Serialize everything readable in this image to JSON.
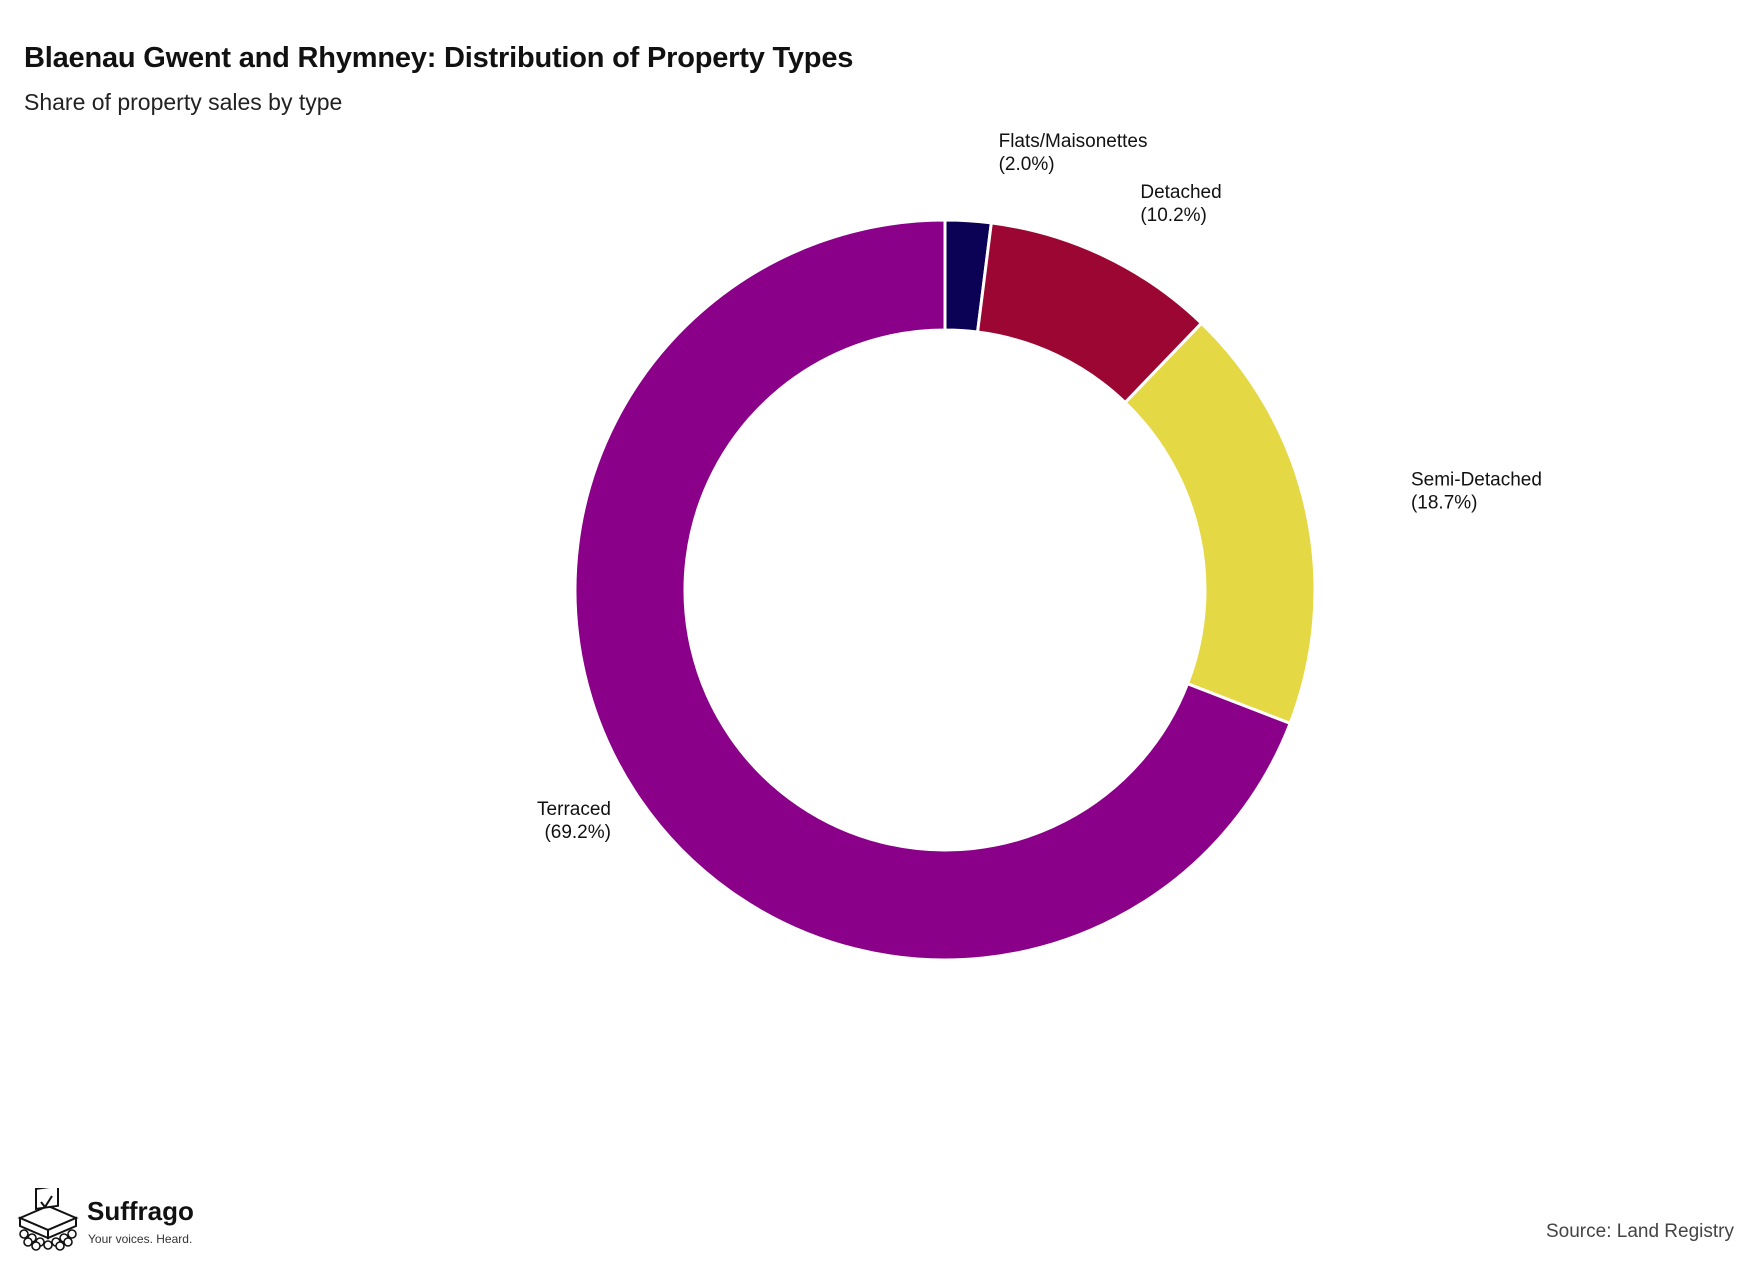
{
  "header": {
    "title": "Blaenau Gwent and Rhymney: Distribution of Property Types",
    "subtitle": "Share of property sales by type"
  },
  "chart_data": {
    "type": "pie",
    "variant": "donut",
    "title": "Blaenau Gwent and Rhymney: Distribution of Property Types",
    "subtitle": "Share of property sales by type",
    "start_angle": "12 o'clock",
    "direction": "clockwise",
    "slices": [
      {
        "label": "Flats/Maisonettes",
        "percent_label": "(2.0%)",
        "value": 2.0,
        "color": "#0b0155"
      },
      {
        "label": "Detached",
        "percent_label": "(10.2%)",
        "value": 10.2,
        "color": "#9b0632"
      },
      {
        "label": "Semi-Detached",
        "percent_label": "(18.7%)",
        "value": 18.7,
        "color": "#e4d845"
      },
      {
        "label": "Terraced",
        "percent_label": "(69.2%)",
        "value": 69.2,
        "color": "#8a0088"
      }
    ]
  },
  "footer": {
    "brand_name": "Suffrago",
    "brand_tagline": "Your voices. Heard.",
    "source": "Source: Land Registry"
  }
}
